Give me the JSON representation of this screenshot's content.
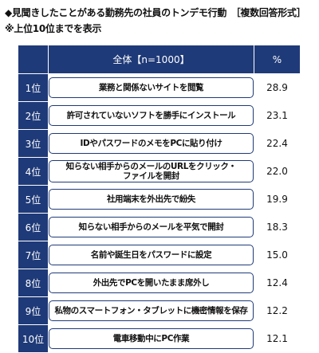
{
  "title": "◆見聞きしたことがある勤務先の社員のトンデモ行動　［複数回答形式］",
  "note": "※上位10位までを表示",
  "colors": {
    "header_bg": "#1f3a78",
    "rank_bg": "#1f3a78",
    "pill_border": "#1f3a78"
  },
  "chart_data": {
    "type": "table",
    "columns": [
      "",
      "全体【n=1000】",
      "%"
    ],
    "rows": [
      {
        "rank": "1位",
        "item": "業務と関係ないサイトを閲覧",
        "value": "28.9"
      },
      {
        "rank": "2位",
        "item": "許可されていないソフトを勝手にインストール",
        "value": "23.1"
      },
      {
        "rank": "3位",
        "item": "IDやパスワードのメモをPCに貼り付け",
        "value": "22.4"
      },
      {
        "rank": "4位",
        "item": "知らない相手からのメールのURLをクリック・\nファイルを開封",
        "value": "22.0"
      },
      {
        "rank": "5位",
        "item": "社用端末を外出先で紛失",
        "value": "19.9"
      },
      {
        "rank": "6位",
        "item": "知らない相手からのメールを平気で開封",
        "value": "18.3"
      },
      {
        "rank": "7位",
        "item": "名前や誕生日をパスワードに設定",
        "value": "15.0"
      },
      {
        "rank": "8位",
        "item": "外出先でPCを開いたまま席外し",
        "value": "12.4"
      },
      {
        "rank": "9位",
        "item": "私物のスマートフォン・タブレットに機密情報を保存",
        "value": "12.2"
      },
      {
        "rank": "10位",
        "item": "電車移動中にPC作業",
        "value": "12.1"
      }
    ]
  }
}
